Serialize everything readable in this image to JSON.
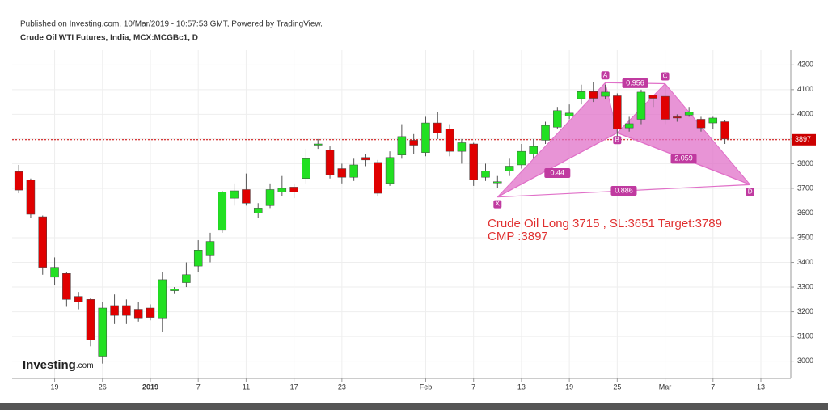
{
  "header": {
    "published": "Published on Investing.com, 10/Mar/2019 - 10:57:53 GMT, Powered by TradingView.",
    "symbol": "Crude Oil WTI Futures, India, MCX:MCGBc1, D"
  },
  "logo": {
    "name": "Investing",
    "suffix": ".com"
  },
  "chart_data": {
    "type": "candlestick",
    "x": [
      0,
      1,
      2,
      3,
      4,
      5,
      6,
      7,
      8,
      9,
      10,
      11,
      12,
      13,
      14,
      15,
      16,
      17,
      18,
      19,
      20,
      21,
      22,
      23,
      24,
      25,
      26,
      27,
      28,
      29,
      30,
      31,
      32,
      33,
      34,
      35,
      36,
      37,
      38,
      39,
      40,
      41,
      42,
      43,
      44,
      45,
      46,
      47,
      48,
      49,
      50,
      51,
      52,
      53,
      54,
      55,
      56,
      57,
      58,
      59
    ],
    "open": [
      3768,
      3735,
      3585,
      3340,
      3355,
      3262,
      3250,
      3020,
      3225,
      3225,
      3210,
      3215,
      3175,
      3285,
      3318,
      3385,
      3430,
      3530,
      3660,
      3695,
      3600,
      3630,
      3685,
      3705,
      3740,
      3878,
      3855,
      3780,
      3745,
      3825,
      3805,
      3720,
      3835,
      3895,
      3845,
      3965,
      3940,
      3850,
      3880,
      3745,
      3725,
      3770,
      3795,
      3840,
      3895,
      3948,
      3993,
      4063,
      4092,
      4073,
      4075,
      3945,
      3980,
      4077,
      4073,
      3990,
      3997,
      3980,
      3965,
      3970
    ],
    "high": [
      3795,
      3740,
      3590,
      3420,
      3360,
      3280,
      3255,
      3240,
      3270,
      3250,
      3240,
      3230,
      3360,
      3300,
      3400,
      3490,
      3520,
      3690,
      3720,
      3760,
      3640,
      3720,
      3750,
      3720,
      3860,
      3900,
      3870,
      3800,
      3820,
      3840,
      3815,
      3850,
      3960,
      3920,
      3990,
      4010,
      3960,
      3900,
      3885,
      3800,
      3750,
      3820,
      3880,
      3900,
      3970,
      4030,
      4040,
      4120,
      4130,
      4120,
      4085,
      3990,
      4100,
      4080,
      4120,
      4000,
      4030,
      3990,
      3990,
      3975
    ],
    "low": [
      3680,
      3580,
      3350,
      3310,
      3220,
      3210,
      3060,
      2990,
      3150,
      3150,
      3160,
      3165,
      3120,
      3275,
      3300,
      3360,
      3400,
      3520,
      3630,
      3630,
      3580,
      3620,
      3670,
      3660,
      3720,
      3860,
      3740,
      3720,
      3730,
      3790,
      3670,
      3710,
      3820,
      3840,
      3830,
      3900,
      3830,
      3800,
      3710,
      3730,
      3700,
      3750,
      3780,
      3820,
      3880,
      3940,
      3980,
      4040,
      4050,
      4060,
      3900,
      3930,
      3960,
      4030,
      3960,
      3970,
      3990,
      3930,
      3940,
      3880
    ],
    "close": [
      3693,
      3595,
      3380,
      3380,
      3250,
      3240,
      3085,
      3215,
      3185,
      3185,
      3175,
      3177,
      3330,
      3292,
      3350,
      3450,
      3485,
      3685,
      3690,
      3640,
      3620,
      3695,
      3700,
      3685,
      3820,
      3880,
      3755,
      3745,
      3795,
      3815,
      3680,
      3825,
      3910,
      3875,
      3965,
      3925,
      3850,
      3885,
      3735,
      3770,
      3727,
      3790,
      3850,
      3870,
      3955,
      4015,
      4005,
      4092,
      4065,
      4090,
      3940,
      3962,
      4090,
      4065,
      3980,
      3988,
      4010,
      3945,
      3985,
      3900
    ],
    "up_color": "#22e022",
    "down_color": "#e00000",
    "xlim": [
      -0.55,
      64.5
    ],
    "xticks": [
      {
        "value": 3,
        "label": "19"
      },
      {
        "value": 7,
        "label": "26"
      },
      {
        "value": 11,
        "label": "2019"
      },
      {
        "value": 15,
        "label": "7"
      },
      {
        "value": 19,
        "label": "11"
      },
      {
        "value": 23,
        "label": "17"
      },
      {
        "value": 27,
        "label": "23"
      },
      {
        "value": 34,
        "label": "Feb"
      },
      {
        "value": 38,
        "label": "7"
      },
      {
        "value": 42,
        "label": "13"
      },
      {
        "value": 46,
        "label": "19"
      },
      {
        "value": 50,
        "label": "25"
      },
      {
        "value": 54,
        "label": "Mar"
      },
      {
        "value": 58,
        "label": "7"
      },
      {
        "value": 62,
        "label": "13"
      }
    ],
    "ylim": [
      2930,
      4260
    ],
    "yticks": [
      3000,
      3100,
      3200,
      3300,
      3400,
      3500,
      3600,
      3700,
      3800,
      3900,
      4000,
      4100,
      4200
    ],
    "grid": true,
    "last_price": 3897,
    "last_price_color": "#cc0000",
    "pattern": {
      "color": "#e070c8",
      "points": [
        {
          "label": "X",
          "x": 40,
          "y": 3665
        },
        {
          "label": "A",
          "x": 49,
          "y": 4128
        },
        {
          "label": "B",
          "x": 50,
          "y": 3925
        },
        {
          "label": "C",
          "x": 54,
          "y": 4124
        },
        {
          "label": "D",
          "x": 61.1,
          "y": 3715
        }
      ],
      "ratios": [
        0.44,
        0.956,
        2.059,
        0.886
      ]
    },
    "annotations": [
      "Crude Oil Long 3715 , SL:3651 Target:3789",
      "CMP :3897"
    ],
    "annotation_color": "#e03030"
  }
}
